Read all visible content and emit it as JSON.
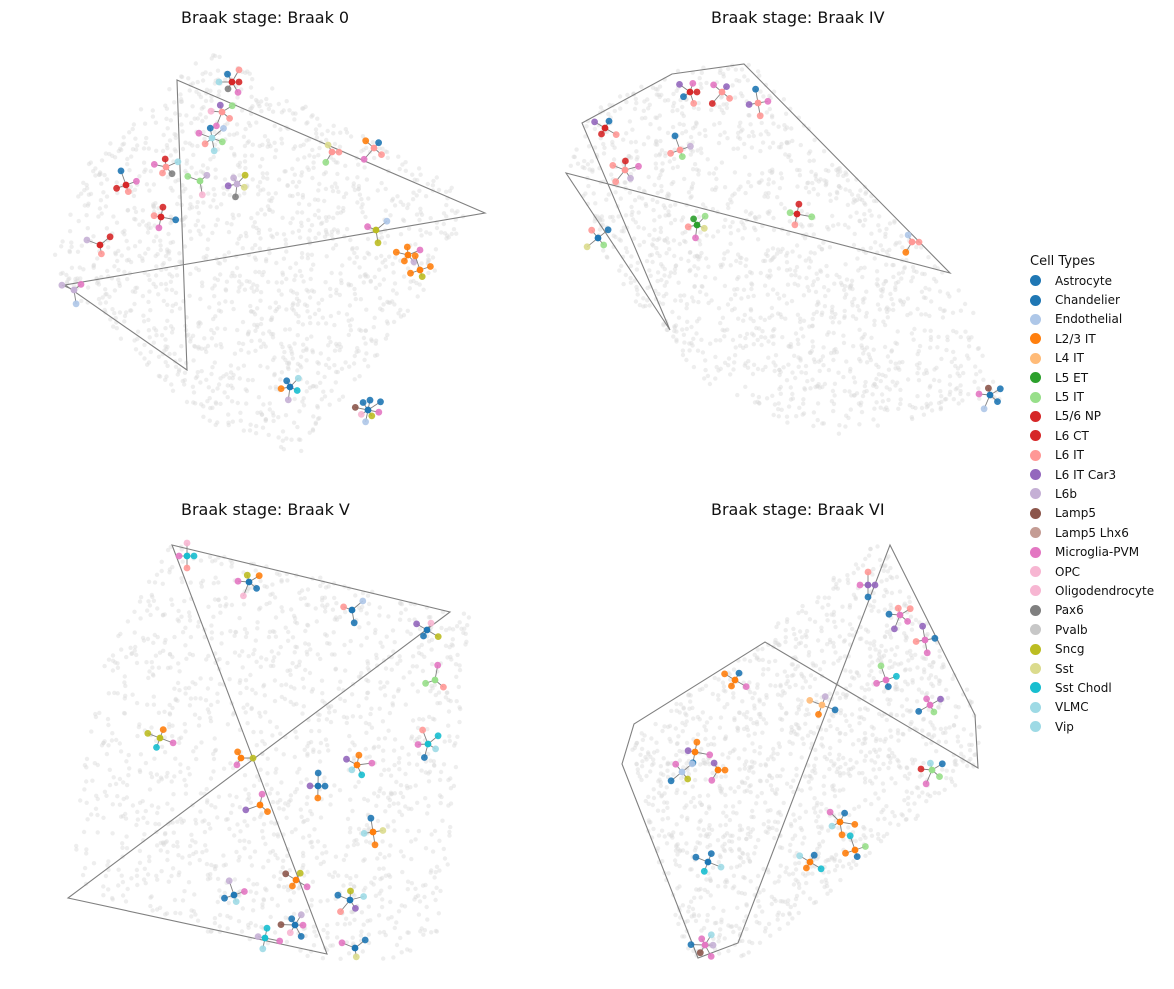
{
  "chart_data": [
    {
      "type": "scatter",
      "title": "Braak stage: Braak 0",
      "clusters": [
        {
          "center": [
            232,
            82
          ],
          "types": [
            "L5/6 NP",
            "Microglia-PVM",
            "Pax6",
            "VLMC",
            "Chandelier",
            "L6 IT"
          ]
        },
        {
          "center": [
            222,
            112
          ],
          "types": [
            "L6 IT",
            "Microglia-PVM",
            "Oligodendrocyte",
            "L6 IT Car3",
            "L5 IT"
          ]
        },
        {
          "center": [
            212,
            138
          ],
          "types": [
            "Vip",
            "L6 IT",
            "Microglia-PVM",
            "Chandelier",
            "Endothelial",
            "L5 IT"
          ]
        },
        {
          "center": [
            166,
            167
          ],
          "types": [
            "L6 IT",
            "Microglia-PVM",
            "L5/6 NP",
            "Vip",
            "Pax6"
          ]
        },
        {
          "center": [
            126,
            185
          ],
          "types": [
            "L5/6 NP",
            "Chandelier",
            "Microglia-PVM",
            "L6 IT"
          ]
        },
        {
          "center": [
            200,
            181
          ],
          "types": [
            "L5 IT",
            "L6b",
            "Oligodendrocyte"
          ]
        },
        {
          "center": [
            237,
            184
          ],
          "types": [
            "L6b",
            "Sncg",
            "Sst",
            "Pax6",
            "L6 IT Car3"
          ]
        },
        {
          "center": [
            161,
            217
          ],
          "types": [
            "L6 CT",
            "Chandelier",
            "Microglia-PVM",
            "L6 IT"
          ]
        },
        {
          "center": [
            100,
            245
          ],
          "types": [
            "L6 CT",
            "L6 IT",
            "L6b"
          ]
        },
        {
          "center": [
            332,
            152
          ],
          "types": [
            "L6 IT",
            "L5 IT",
            "Sst"
          ]
        },
        {
          "center": [
            374,
            148
          ],
          "types": [
            "L6 IT",
            "Microglia-PVM",
            "L2/3 IT",
            "Chandelier"
          ]
        },
        {
          "center": [
            376,
            230
          ],
          "types": [
            "Sncg",
            "Microglia-PVM",
            "Endothelial"
          ]
        },
        {
          "center": [
            408,
            255
          ],
          "types": [
            "L2/3 IT",
            "L2/3 IT",
            "L2/3 IT",
            "Microglia-PVM",
            "L6b"
          ]
        },
        {
          "center": [
            420,
            270
          ],
          "types": [
            "L2/3 IT",
            "L2/3 IT",
            "L2/3 IT",
            "Sncg"
          ]
        },
        {
          "center": [
            74,
            290
          ],
          "types": [
            "L6b",
            "Microglia-PVM",
            "Endothelial"
          ]
        },
        {
          "center": [
            290,
            387
          ],
          "types": [
            "Chandelier",
            "VLMC",
            "Sst Chodl",
            "L6b",
            "L2/3 IT"
          ]
        },
        {
          "center": [
            368,
            410
          ],
          "types": [
            "Chandelier",
            "Chandelier",
            "Microglia-PVM",
            "Sncg",
            "Endothelial",
            "OPC",
            "Lamp5",
            "Chandelier"
          ]
        }
      ],
      "hull": [
        [
          177,
          80
        ],
        [
          485,
          213
        ],
        [
          65,
          285
        ],
        [
          187,
          370
        ]
      ]
    },
    {
      "type": "scatter",
      "title": "Braak stage: Braak IV",
      "clusters": [
        {
          "center": [
            690,
            92
          ],
          "types": [
            "L5/6 NP",
            "L6 IT",
            "Chandelier",
            "L6 IT Car3",
            "Microglia-PVM"
          ]
        },
        {
          "center": [
            722,
            92
          ],
          "types": [
            "L6 IT",
            "L5/6 NP",
            "Microglia-PVM",
            "L6 IT Car3"
          ]
        },
        {
          "center": [
            758,
            103
          ],
          "types": [
            "L6 IT",
            "L6 IT Car3",
            "Chandelier",
            "Microglia-PVM"
          ]
        },
        {
          "center": [
            605,
            128
          ],
          "types": [
            "L5/6 NP",
            "L6 IT Car3",
            "Chandelier",
            "L6 IT"
          ]
        },
        {
          "center": [
            680,
            150
          ],
          "types": [
            "L6 IT",
            "Chandelier",
            "L6b",
            "L5 IT"
          ]
        },
        {
          "center": [
            625,
            170
          ],
          "types": [
            "L6 IT",
            "L5/6 NP",
            "Microglia-PVM",
            "L6b",
            "L6 IT"
          ]
        },
        {
          "center": [
            697,
            225
          ],
          "types": [
            "L5 ET",
            "L5 IT",
            "Sst",
            "Microglia-PVM",
            "L6 IT"
          ]
        },
        {
          "center": [
            797,
            214
          ],
          "types": [
            "L5/6 NP",
            "L5 IT",
            "L6 IT",
            "L5 IT"
          ]
        },
        {
          "center": [
            598,
            238
          ],
          "types": [
            "Chandelier",
            "L5 IT",
            "Sst",
            "L6 IT"
          ]
        },
        {
          "center": [
            912,
            242
          ],
          "types": [
            "L6 IT",
            "L2/3 IT",
            "Endothelial"
          ]
        },
        {
          "center": [
            990,
            395
          ],
          "types": [
            "Chandelier",
            "Endothelial",
            "Microglia-PVM",
            "Lamp5",
            "Chandelier"
          ]
        }
      ],
      "hull": [
        [
          672,
          74
        ],
        [
          744,
          64
        ],
        [
          950,
          273
        ],
        [
          566,
          173
        ],
        [
          670,
          330
        ],
        [
          582,
          123
        ]
      ]
    },
    {
      "type": "scatter",
      "title": "Braak stage: Braak V",
      "clusters": [
        {
          "center": [
            187,
            556
          ],
          "types": [
            "Sst Chodl",
            "L6 IT",
            "Microglia-PVM",
            "Oligodendrocyte"
          ]
        },
        {
          "center": [
            249,
            582
          ],
          "types": [
            "Chandelier",
            "Oligodendrocyte",
            "Microglia-PVM",
            "Sncg",
            "L2/3 IT"
          ]
        },
        {
          "center": [
            352,
            610
          ],
          "types": [
            "Chandelier",
            "L6 IT",
            "Endothelial"
          ]
        },
        {
          "center": [
            427,
            630
          ],
          "types": [
            "Chandelier",
            "L6 IT Car3",
            "Oligodendrocyte",
            "Sncg"
          ]
        },
        {
          "center": [
            435,
            680
          ],
          "types": [
            "L5 IT",
            "Microglia-PVM",
            "L6 IT"
          ]
        },
        {
          "center": [
            160,
            738
          ],
          "types": [
            "Sncg",
            "L2/3 IT",
            "Microglia-PVM",
            "Sst Chodl"
          ]
        },
        {
          "center": [
            241,
            758
          ],
          "types": [
            "L2/3 IT",
            "Sncg",
            "Microglia-PVM"
          ]
        },
        {
          "center": [
            357,
            765
          ],
          "types": [
            "L2/3 IT",
            "Microglia-PVM",
            "Sst Chodl",
            "VLMC",
            "L6 IT Car3"
          ]
        },
        {
          "center": [
            428,
            744
          ],
          "types": [
            "Sst Chodl",
            "Vip",
            "Chandelier",
            "Microglia-PVM",
            "L6 IT"
          ]
        },
        {
          "center": [
            318,
            786
          ],
          "types": [
            "Chandelier",
            "L2/3 IT",
            "L6 IT Car3",
            "Chandelier"
          ]
        },
        {
          "center": [
            260,
            805
          ],
          "types": [
            "L2/3 IT",
            "L6 IT Car3",
            "Microglia-PVM"
          ]
        },
        {
          "center": [
            373,
            832
          ],
          "types": [
            "L2/3 IT",
            "Vip",
            "Chandelier",
            "Sst"
          ]
        },
        {
          "center": [
            296,
            880
          ],
          "types": [
            "L2/3 IT",
            "Lamp5",
            "Sncg",
            "Microglia-PVM"
          ]
        },
        {
          "center": [
            234,
            895
          ],
          "types": [
            "Chandelier",
            "L6b",
            "Microglia-PVM",
            "Vip"
          ]
        },
        {
          "center": [
            350,
            900
          ],
          "types": [
            "Chandelier",
            "Sncg",
            "Vip",
            "L6 IT Car3",
            "L6 IT"
          ]
        },
        {
          "center": [
            295,
            925
          ],
          "types": [
            "Chandelier",
            "L6b",
            "Microglia-PVM",
            "Chandelier",
            "Oligodendrocyte",
            "Lamp5"
          ]
        },
        {
          "center": [
            265,
            938
          ],
          "types": [
            "Sst Chodl",
            "Microglia-PVM",
            "Vip",
            "L6b"
          ]
        },
        {
          "center": [
            355,
            948
          ],
          "types": [
            "Chandelier",
            "Sst",
            "Microglia-PVM"
          ]
        }
      ],
      "hull": [
        [
          172,
          545
        ],
        [
          450,
          612
        ],
        [
          68,
          898
        ],
        [
          327,
          954
        ]
      ]
    },
    {
      "type": "scatter",
      "title": "Braak stage: Braak VI",
      "clusters": [
        {
          "center": [
            868,
            585
          ],
          "types": [
            "L6 IT Car3",
            "Chandelier",
            "Microglia-PVM",
            "L6 IT"
          ]
        },
        {
          "center": [
            900,
            615
          ],
          "types": [
            "Microglia-PVM",
            "L6 IT Car3",
            "Chandelier",
            "L6 IT",
            "L6 IT"
          ]
        },
        {
          "center": [
            925,
            640
          ],
          "types": [
            "Microglia-PVM",
            "L6 IT",
            "L6 IT Car3",
            "Chandelier"
          ]
        },
        {
          "center": [
            735,
            680
          ],
          "types": [
            "L2/3 IT",
            "L2/3 IT",
            "Chandelier",
            "Microglia-PVM"
          ]
        },
        {
          "center": [
            886,
            680
          ],
          "types": [
            "Microglia-PVM",
            "L5 IT",
            "Sst Chodl",
            "Chandelier"
          ]
        },
        {
          "center": [
            822,
            705
          ],
          "types": [
            "L4 IT",
            "L6b",
            "Chandelier",
            "L2/3 IT"
          ]
        },
        {
          "center": [
            930,
            705
          ],
          "types": [
            "Microglia-PVM",
            "L6 IT Car3",
            "L5 IT",
            "Chandelier"
          ]
        },
        {
          "center": [
            695,
            752
          ],
          "types": [
            "L2/3 IT",
            "Microglia-PVM",
            "Chandelier",
            "L6 IT Car3"
          ]
        },
        {
          "center": [
            682,
            772
          ],
          "types": [
            "Endothelial",
            "Sncg",
            "Chandelier",
            "Microglia-PVM"
          ]
        },
        {
          "center": [
            718,
            770
          ],
          "types": [
            "L2/3 IT",
            "Microglia-PVM",
            "L6 IT Car3"
          ]
        },
        {
          "center": [
            932,
            770
          ],
          "types": [
            "L5 IT",
            "Microglia-PVM",
            "L6 CT",
            "Vip",
            "Chandelier"
          ]
        },
        {
          "center": [
            840,
            822
          ],
          "types": [
            "L2/3 IT",
            "Vip",
            "Microglia-PVM",
            "Chandelier",
            "L2/3 IT"
          ]
        },
        {
          "center": [
            810,
            862
          ],
          "types": [
            "L2/3 IT",
            "Vip",
            "Chandelier",
            "Sst Chodl"
          ]
        },
        {
          "center": [
            855,
            850
          ],
          "types": [
            "L2/3 IT",
            "Sst Chodl",
            "L5 IT",
            "Chandelier"
          ]
        },
        {
          "center": [
            708,
            862
          ],
          "types": [
            "Chandelier",
            "Chandelier",
            "Vip",
            "Sst Chodl"
          ]
        },
        {
          "center": [
            705,
            945
          ],
          "types": [
            "Microglia-PVM",
            "Vip",
            "L6b",
            "Microglia-PVM",
            "Lamp5",
            "Chandelier"
          ]
        }
      ],
      "hull": [
        [
          890,
          545
        ],
        [
          975,
          715
        ],
        [
          978,
          768
        ],
        [
          765,
          642
        ],
        [
          634,
          724
        ],
        [
          622,
          764
        ],
        [
          698,
          958
        ],
        [
          738,
          943
        ]
      ]
    }
  ],
  "legend": {
    "title": "Cell Types",
    "items": [
      {
        "label": "Astrocyte",
        "color": "#1f77b4"
      },
      {
        "label": "Chandelier",
        "color": "#1f77b4"
      },
      {
        "label": "Endothelial",
        "color": "#aec7e8"
      },
      {
        "label": "L2/3 IT",
        "color": "#ff7f0e"
      },
      {
        "label": "L4 IT",
        "color": "#ffbb78"
      },
      {
        "label": "L5 ET",
        "color": "#2ca02c"
      },
      {
        "label": "L5 IT",
        "color": "#98df8a"
      },
      {
        "label": "L5/6 NP",
        "color": "#d62728"
      },
      {
        "label": "L6 CT",
        "color": "#d62728"
      },
      {
        "label": "L6 IT",
        "color": "#ff9896"
      },
      {
        "label": "L6 IT Car3",
        "color": "#9467bd"
      },
      {
        "label": "L6b",
        "color": "#c5b0d5"
      },
      {
        "label": "Lamp5",
        "color": "#8c564b"
      },
      {
        "label": "Lamp5 Lhx6",
        "color": "#c49c94"
      },
      {
        "label": "Microglia-PVM",
        "color": "#e377c2"
      },
      {
        "label": "OPC",
        "color": "#f7b6d2"
      },
      {
        "label": "Oligodendrocyte",
        "color": "#f7b6d2"
      },
      {
        "label": "Pax6",
        "color": "#7f7f7f"
      },
      {
        "label": "Pvalb",
        "color": "#c7c7c7"
      },
      {
        "label": "Sncg",
        "color": "#bcbd22"
      },
      {
        "label": "Sst",
        "color": "#dbdb8d"
      },
      {
        "label": "Sst Chodl",
        "color": "#17becf"
      },
      {
        "label": "VLMC",
        "color": "#9edae5"
      },
      {
        "label": "Vip",
        "color": "#9edae5"
      }
    ]
  },
  "colors": {
    "background_cells": "#d9d9d9",
    "hull_line": "#808080",
    "spoke_line": "#808080"
  }
}
